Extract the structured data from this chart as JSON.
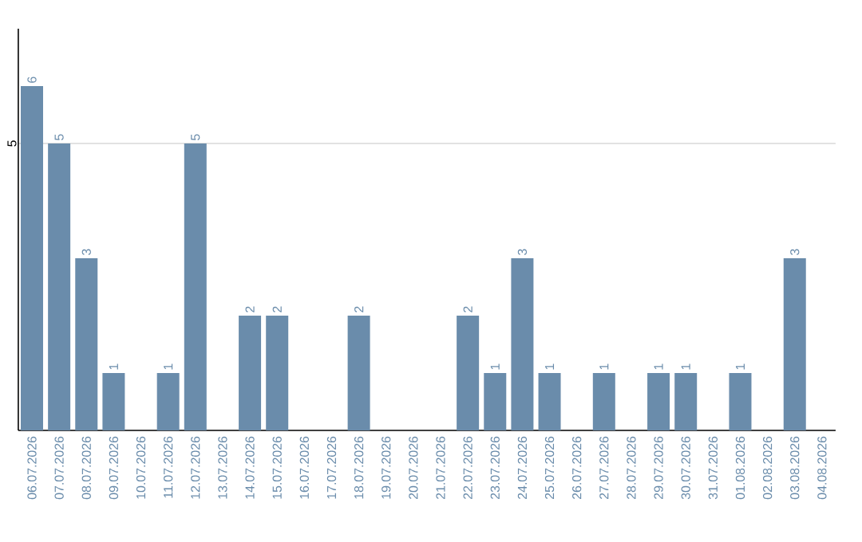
{
  "chart_data": {
    "type": "bar",
    "categories": [
      "06.07.2026",
      "07.07.2026",
      "08.07.2026",
      "09.07.2026",
      "10.07.2026",
      "11.07.2026",
      "12.07.2026",
      "13.07.2026",
      "14.07.2026",
      "15.07.2026",
      "16.07.2026",
      "17.07.2026",
      "18.07.2026",
      "19.07.2026",
      "20.07.2026",
      "21.07.2026",
      "22.07.2026",
      "23.07.2026",
      "24.07.2026",
      "25.07.2026",
      "26.07.2026",
      "27.07.2026",
      "28.07.2026",
      "29.07.2026",
      "30.07.2026",
      "31.07.2026",
      "01.08.2026",
      "02.08.2026",
      "03.08.2026",
      "04.08.2026"
    ],
    "values": [
      6,
      5,
      3,
      1,
      0,
      1,
      5,
      0,
      2,
      2,
      0,
      0,
      2,
      0,
      0,
      0,
      2,
      1,
      3,
      1,
      0,
      1,
      0,
      1,
      1,
      0,
      1,
      0,
      3,
      0
    ],
    "value_labels": [
      "6",
      "5",
      "3",
      "1",
      null,
      "1",
      "5",
      null,
      "2",
      "2",
      null,
      null,
      "2",
      null,
      null,
      null,
      "2",
      "1",
      "3",
      "1",
      null,
      "1",
      null,
      "1",
      "1",
      null,
      "1",
      null,
      "3",
      null
    ],
    "color": "#6a8cab",
    "ylim": [
      0,
      7
    ],
    "yticks": [
      5
    ],
    "grid": "y"
  }
}
